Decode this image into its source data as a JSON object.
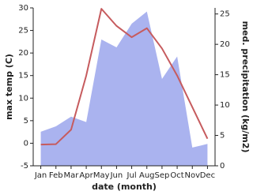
{
  "chart_data": {
    "type": "line-area",
    "categories": [
      "Jan",
      "Feb",
      "Mar",
      "Apr",
      "May",
      "Jun",
      "Jul",
      "Aug",
      "Sep",
      "Oct",
      "Nov",
      "Dec"
    ],
    "xlabel": "date (month)",
    "ylabel": "max temp (C)",
    "y2label": "med. precipitation (kg/m2)",
    "ylim": [
      -5,
      30
    ],
    "yticks": [
      -5,
      0,
      5,
      10,
      15,
      20,
      25,
      30
    ],
    "y2lim": [
      0,
      26
    ],
    "y2ticks": [
      0,
      5,
      10,
      15,
      20,
      25
    ],
    "series": [
      {
        "name": "med. precipitation",
        "type": "area",
        "axis": "y2",
        "color": "#aab3ef",
        "values": [
          5.6,
          6.5,
          8.1,
          7.2,
          20.8,
          19.5,
          23.4,
          25.4,
          14.3,
          18,
          3,
          3.6
        ]
      },
      {
        "name": "max temp",
        "type": "line",
        "axis": "y",
        "color": "#c65b5e",
        "values": [
          -0.3,
          -0.2,
          3,
          15,
          29.8,
          26,
          23.5,
          25.5,
          21,
          15,
          8,
          1
        ]
      }
    ]
  }
}
